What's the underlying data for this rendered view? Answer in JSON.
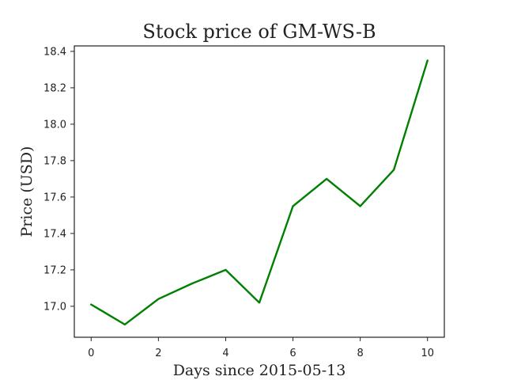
{
  "chart_data": {
    "type": "line",
    "title": "Stock price of GM-WS-B",
    "xlabel": "Days since 2015-05-13",
    "ylabel": "Price (USD)",
    "x": [
      0,
      1,
      2,
      3,
      4,
      5,
      6,
      7,
      8,
      9,
      10
    ],
    "series": [
      {
        "values": [
          17.01,
          16.9,
          17.04,
          17.125,
          17.2,
          17.02,
          17.55,
          17.7,
          17.55,
          17.75,
          18.35
        ],
        "color": "#008000"
      }
    ],
    "xlim": [
      -0.5,
      10.5
    ],
    "ylim": [
      16.83,
      18.43
    ],
    "xticks": [
      0,
      2,
      4,
      6,
      8,
      10
    ],
    "xtick_labels": [
      "0",
      "2",
      "4",
      "6",
      "8",
      "10"
    ],
    "yticks": [
      17.0,
      17.2,
      17.4,
      17.6,
      17.8,
      18.0,
      18.2,
      18.4
    ],
    "ytick_labels": [
      "17.0",
      "17.2",
      "17.4",
      "17.6",
      "17.8",
      "18.0",
      "18.2",
      "18.4"
    ],
    "grid": false,
    "legend": "none"
  }
}
